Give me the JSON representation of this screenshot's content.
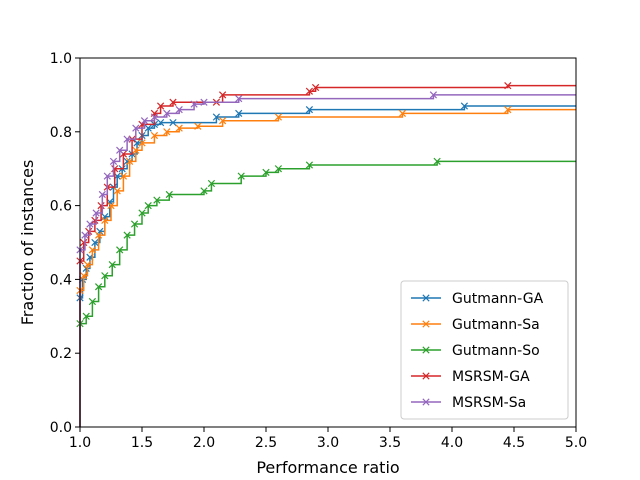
{
  "chart_data": {
    "type": "line",
    "title": "",
    "xlabel": "Performance ratio",
    "ylabel": "Fraction of instances",
    "xlim": [
      1.0,
      5.0
    ],
    "ylim": [
      0.0,
      1.0
    ],
    "xticks": [
      "1.0",
      "1.5",
      "2.0",
      "2.5",
      "3.0",
      "3.5",
      "4.0",
      "4.5",
      "5.0"
    ],
    "yticks": [
      "0.0",
      "0.2",
      "0.4",
      "0.6",
      "0.8",
      "1.0"
    ],
    "grid": false,
    "legend_position": "lower-right",
    "step": true,
    "series": [
      {
        "name": "Gutmann-GA",
        "color": "#1f77b4",
        "points": [
          [
            1.0,
            0.0
          ],
          [
            1.0,
            0.35
          ],
          [
            1.02,
            0.4
          ],
          [
            1.05,
            0.43
          ],
          [
            1.08,
            0.46
          ],
          [
            1.12,
            0.5
          ],
          [
            1.16,
            0.53
          ],
          [
            1.2,
            0.57
          ],
          [
            1.24,
            0.61
          ],
          [
            1.27,
            0.65
          ],
          [
            1.3,
            0.68
          ],
          [
            1.34,
            0.7
          ],
          [
            1.38,
            0.72
          ],
          [
            1.42,
            0.74
          ],
          [
            1.46,
            0.77
          ],
          [
            1.5,
            0.79
          ],
          [
            1.55,
            0.81
          ],
          [
            1.6,
            0.82
          ],
          [
            1.65,
            0.825
          ],
          [
            1.75,
            0.825
          ],
          [
            2.1,
            0.84
          ],
          [
            2.28,
            0.85
          ],
          [
            2.85,
            0.86
          ],
          [
            4.1,
            0.87
          ],
          [
            5.0,
            0.87
          ]
        ]
      },
      {
        "name": "Gutmann-Sa",
        "color": "#ff7f0e",
        "points": [
          [
            1.0,
            0.0
          ],
          [
            1.0,
            0.37
          ],
          [
            1.03,
            0.41
          ],
          [
            1.06,
            0.44
          ],
          [
            1.1,
            0.48
          ],
          [
            1.15,
            0.52
          ],
          [
            1.2,
            0.56
          ],
          [
            1.25,
            0.6
          ],
          [
            1.3,
            0.64
          ],
          [
            1.35,
            0.68
          ],
          [
            1.4,
            0.72
          ],
          [
            1.45,
            0.75
          ],
          [
            1.5,
            0.77
          ],
          [
            1.6,
            0.79
          ],
          [
            1.7,
            0.8
          ],
          [
            1.8,
            0.81
          ],
          [
            1.95,
            0.815
          ],
          [
            2.15,
            0.83
          ],
          [
            2.6,
            0.84
          ],
          [
            3.6,
            0.85
          ],
          [
            4.45,
            0.86
          ],
          [
            5.0,
            0.86
          ]
        ]
      },
      {
        "name": "Gutmann-So",
        "color": "#2ca02c",
        "points": [
          [
            1.0,
            0.0
          ],
          [
            1.0,
            0.28
          ],
          [
            1.05,
            0.3
          ],
          [
            1.1,
            0.34
          ],
          [
            1.15,
            0.38
          ],
          [
            1.2,
            0.41
          ],
          [
            1.26,
            0.44
          ],
          [
            1.32,
            0.48
          ],
          [
            1.38,
            0.52
          ],
          [
            1.44,
            0.55
          ],
          [
            1.5,
            0.58
          ],
          [
            1.55,
            0.6
          ],
          [
            1.62,
            0.615
          ],
          [
            1.72,
            0.63
          ],
          [
            2.0,
            0.64
          ],
          [
            2.06,
            0.66
          ],
          [
            2.3,
            0.68
          ],
          [
            2.5,
            0.69
          ],
          [
            2.6,
            0.7
          ],
          [
            2.85,
            0.71
          ],
          [
            3.88,
            0.72
          ],
          [
            5.0,
            0.72
          ]
        ]
      },
      {
        "name": "MSRSM-GA",
        "color": "#d62728",
        "points": [
          [
            1.0,
            0.0
          ],
          [
            1.0,
            0.45
          ],
          [
            1.03,
            0.5
          ],
          [
            1.07,
            0.53
          ],
          [
            1.12,
            0.56
          ],
          [
            1.17,
            0.6
          ],
          [
            1.22,
            0.65
          ],
          [
            1.28,
            0.7
          ],
          [
            1.35,
            0.74
          ],
          [
            1.42,
            0.78
          ],
          [
            1.5,
            0.82
          ],
          [
            1.6,
            0.85
          ],
          [
            1.65,
            0.87
          ],
          [
            1.75,
            0.88
          ],
          [
            2.1,
            0.88
          ],
          [
            2.15,
            0.9
          ],
          [
            2.85,
            0.91
          ],
          [
            2.9,
            0.92
          ],
          [
            4.45,
            0.925
          ],
          [
            5.0,
            0.925
          ]
        ]
      },
      {
        "name": "MSRSM-Sa",
        "color": "#9467bd",
        "points": [
          [
            1.0,
            0.0
          ],
          [
            1.0,
            0.48
          ],
          [
            1.04,
            0.52
          ],
          [
            1.08,
            0.55
          ],
          [
            1.13,
            0.58
          ],
          [
            1.18,
            0.63
          ],
          [
            1.22,
            0.68
          ],
          [
            1.27,
            0.72
          ],
          [
            1.32,
            0.75
          ],
          [
            1.38,
            0.78
          ],
          [
            1.45,
            0.81
          ],
          [
            1.52,
            0.83
          ],
          [
            1.6,
            0.84
          ],
          [
            1.7,
            0.85
          ],
          [
            1.8,
            0.86
          ],
          [
            1.92,
            0.875
          ],
          [
            2.0,
            0.88
          ],
          [
            2.28,
            0.89
          ],
          [
            3.85,
            0.9
          ],
          [
            5.0,
            0.9
          ]
        ]
      }
    ]
  }
}
